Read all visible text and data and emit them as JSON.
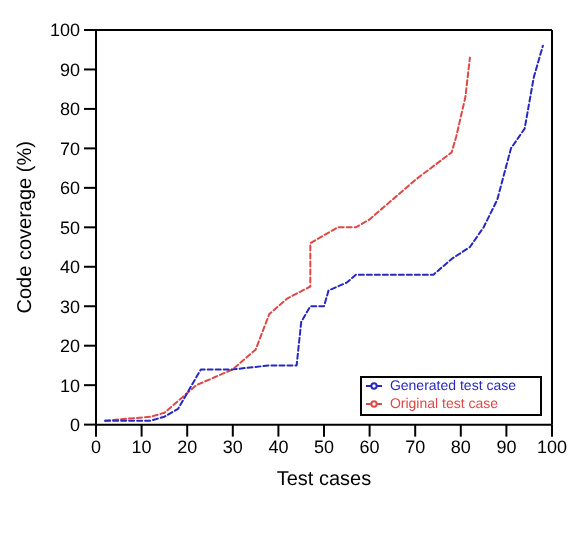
{
  "chart_data": {
    "type": "line",
    "xlabel": "Test cases",
    "ylabel": "Code coverage (%)",
    "xlim": [
      0,
      100
    ],
    "ylim": [
      0,
      100
    ],
    "xticks": [
      0,
      10,
      20,
      30,
      40,
      50,
      60,
      70,
      80,
      90,
      100
    ],
    "yticks": [
      0,
      10,
      20,
      30,
      40,
      50,
      60,
      70,
      80,
      90,
      100
    ],
    "grid": false,
    "legend": "bottom right",
    "line_style": "dashed",
    "marker": "none",
    "series": [
      {
        "name": "Original test case",
        "color": "#e04848",
        "x": [
          2,
          12,
          15,
          18,
          22,
          26,
          30,
          35,
          38,
          42,
          47,
          47,
          50,
          53,
          57,
          60,
          65,
          70,
          78,
          79,
          81,
          82
        ],
        "values": [
          1,
          2,
          3,
          6,
          10,
          12,
          14,
          19,
          28,
          32,
          35,
          46,
          48,
          50,
          50,
          52,
          57,
          62,
          69,
          73,
          83,
          93
        ]
      },
      {
        "name": "Generated test case",
        "color": "#2828c0",
        "x": [
          2,
          12,
          15,
          18,
          21,
          23,
          30,
          38,
          44,
          45,
          47,
          50,
          51,
          55,
          57,
          74,
          78,
          82,
          85,
          88,
          91,
          94,
          96,
          98
        ],
        "values": [
          1,
          1,
          2,
          4,
          10,
          14,
          14,
          15,
          15,
          26,
          30,
          30,
          34,
          36,
          38,
          38,
          42,
          45,
          50,
          57,
          70,
          75,
          88,
          96
        ]
      }
    ]
  }
}
